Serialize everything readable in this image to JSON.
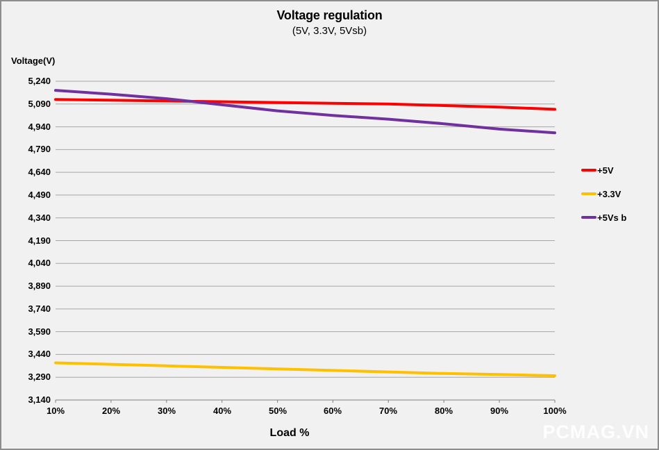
{
  "watermark": "PCMAG.VN",
  "colors": {
    "background": "#F1F1F2",
    "border": "#8D8D8D",
    "gridline": "#A6A6A6",
    "axis": "#808080",
    "text": "#000000",
    "watermark_text": "#FFFFFF"
  },
  "chart_data": {
    "type": "line",
    "title": "Voltage regulation",
    "subtitle": "(5V, 3.3V, 5Vsb)",
    "ylabel": "Voltage(V)",
    "xlabel": "Load %",
    "grid": true,
    "legend_position": "right",
    "x_values": [
      10,
      20,
      30,
      40,
      50,
      60,
      70,
      80,
      90,
      100
    ],
    "x_tick_labels": [
      "10%",
      "20%",
      "30%",
      "40%",
      "50%",
      "60%",
      "70%",
      "80%",
      "90%",
      "100%"
    ],
    "ylim": [
      3140,
      5240
    ],
    "y_ticks": [
      3140,
      3290,
      3440,
      3590,
      3740,
      3890,
      4040,
      4190,
      4340,
      4490,
      4640,
      4790,
      4940,
      5090,
      5240
    ],
    "y_tick_labels": [
      "3,140",
      "3,290",
      "3,440",
      "3,590",
      "3,740",
      "3,890",
      "4,040",
      "4,190",
      "4,340",
      "4,490",
      "4,640",
      "4,790",
      "4,940",
      "5,090",
      "5,240"
    ],
    "series": [
      {
        "name": "+5V",
        "color": "#FF0000",
        "values": [
          5120,
          5115,
          5110,
          5105,
          5100,
          5095,
          5090,
          5080,
          5070,
          5055
        ]
      },
      {
        "name": "+3.3V",
        "color": "#FFC000",
        "values": [
          3385,
          3375,
          3365,
          3355,
          3345,
          3335,
          3325,
          3315,
          3308,
          3300
        ]
      },
      {
        "name": "+5Vs b",
        "color": "#7030A0",
        "values": [
          5180,
          5155,
          5125,
          5085,
          5045,
          5015,
          4990,
          4960,
          4925,
          4900
        ]
      }
    ]
  }
}
